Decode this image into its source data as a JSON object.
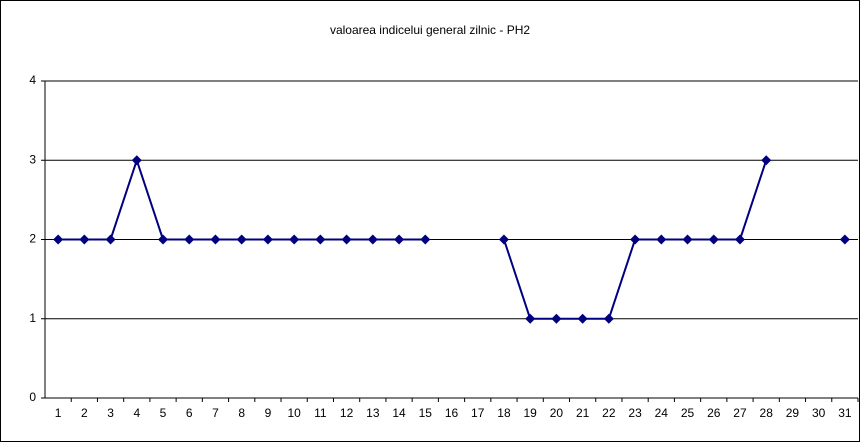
{
  "chart_data": {
    "type": "line",
    "title": "valoarea indicelui general zilnic - PH2",
    "categories": [
      "1",
      "2",
      "3",
      "4",
      "5",
      "6",
      "7",
      "8",
      "9",
      "10",
      "11",
      "12",
      "13",
      "14",
      "15",
      "16",
      "17",
      "18",
      "19",
      "20",
      "21",
      "22",
      "23",
      "24",
      "25",
      "26",
      "27",
      "28",
      "29",
      "30",
      "31"
    ],
    "series": [
      {
        "name": "PH2",
        "color": "#000080",
        "values": [
          2,
          2,
          2,
          3,
          2,
          2,
          2,
          2,
          2,
          2,
          2,
          2,
          2,
          2,
          2,
          null,
          null,
          2,
          1,
          1,
          1,
          1,
          2,
          2,
          2,
          2,
          2,
          3,
          null,
          null,
          2
        ]
      }
    ],
    "ylim": [
      0,
      4
    ],
    "yticks": [
      0,
      1,
      2,
      3,
      4
    ],
    "grid": true,
    "legend": false
  }
}
